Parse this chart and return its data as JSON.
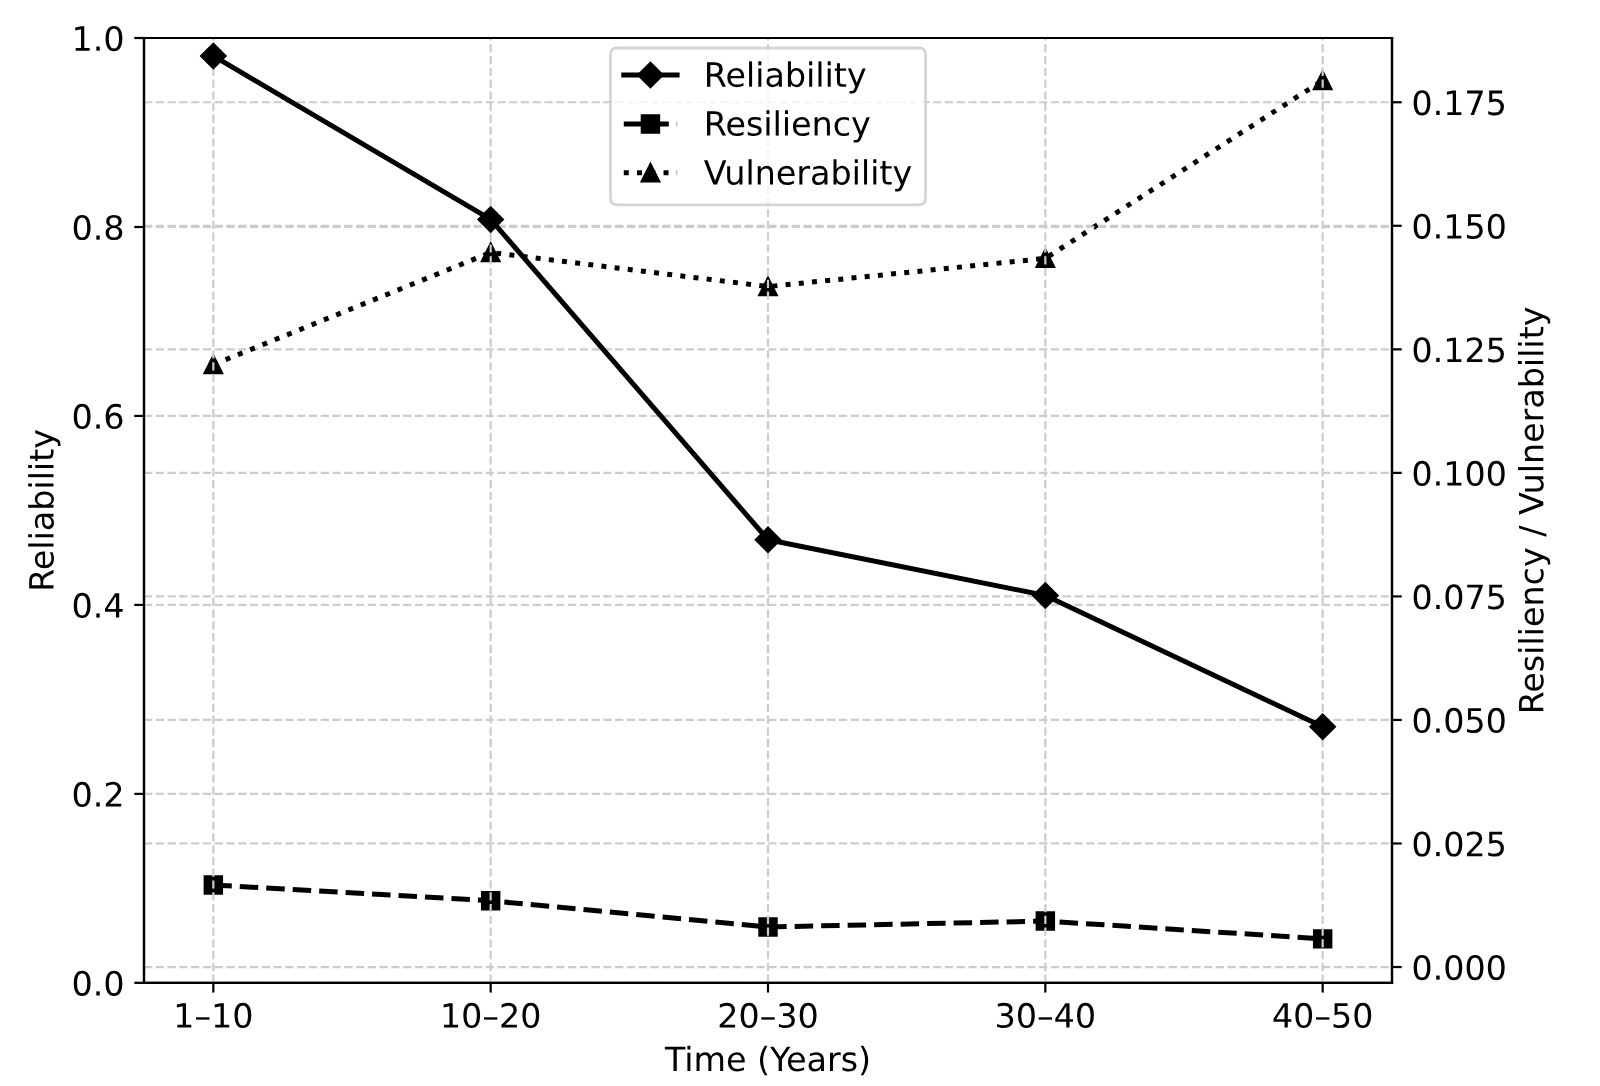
{
  "chart_data": {
    "type": "line",
    "xlabel": "Time (Years)",
    "ylabel": "Reliability",
    "y2label": "Resiliency / Vulnerability",
    "categories": [
      "1–10",
      "10–20",
      "20–30",
      "30–40",
      "40–50"
    ],
    "series": [
      {
        "name": "Reliability",
        "color": "#000000",
        "marker": "diamond",
        "line_style": "solid",
        "values": [
          0.981,
          0.808,
          0.469,
          0.41,
          0.271
        ]
      },
      {
        "name": "Resiliency",
        "color": "#000000",
        "marker": "square",
        "line_style": "dashed",
        "axis": "y2",
        "values": [
          0.0166,
          0.0134,
          0.0081,
          0.0093,
          0.0057
        ]
      },
      {
        "name": "Vulnerability",
        "color": "#000000",
        "marker": "triangle",
        "line_style": "dotted",
        "axis": "y2",
        "values": [
          0.1219,
          0.1446,
          0.1377,
          0.1434,
          0.1794
        ]
      }
    ],
    "ylim": [
      0,
      1.0
    ],
    "yticks": [
      {
        "value": 0,
        "label": "0.0"
      },
      0.2,
      0.4,
      0.6,
      0.8,
      {
        "value": 1,
        "label": "1.0"
      }
    ],
    "y2lim": [
      -0.0032,
      0.188
    ],
    "y2ticks": [
      {
        "value": 0,
        "label": "0.000"
      },
      {
        "value": 0.025,
        "label": "0.025"
      },
      {
        "value": 0.05,
        "label": "0.050"
      },
      {
        "value": 0.075,
        "label": "0.075"
      },
      {
        "value": 0.1,
        "label": "0.100"
      },
      {
        "value": 0.125,
        "label": "0.125"
      },
      {
        "value": 0.15,
        "label": "0.150"
      },
      {
        "value": 0.175,
        "label": "0.175"
      }
    ],
    "grid": true,
    "legend": "top center"
  }
}
